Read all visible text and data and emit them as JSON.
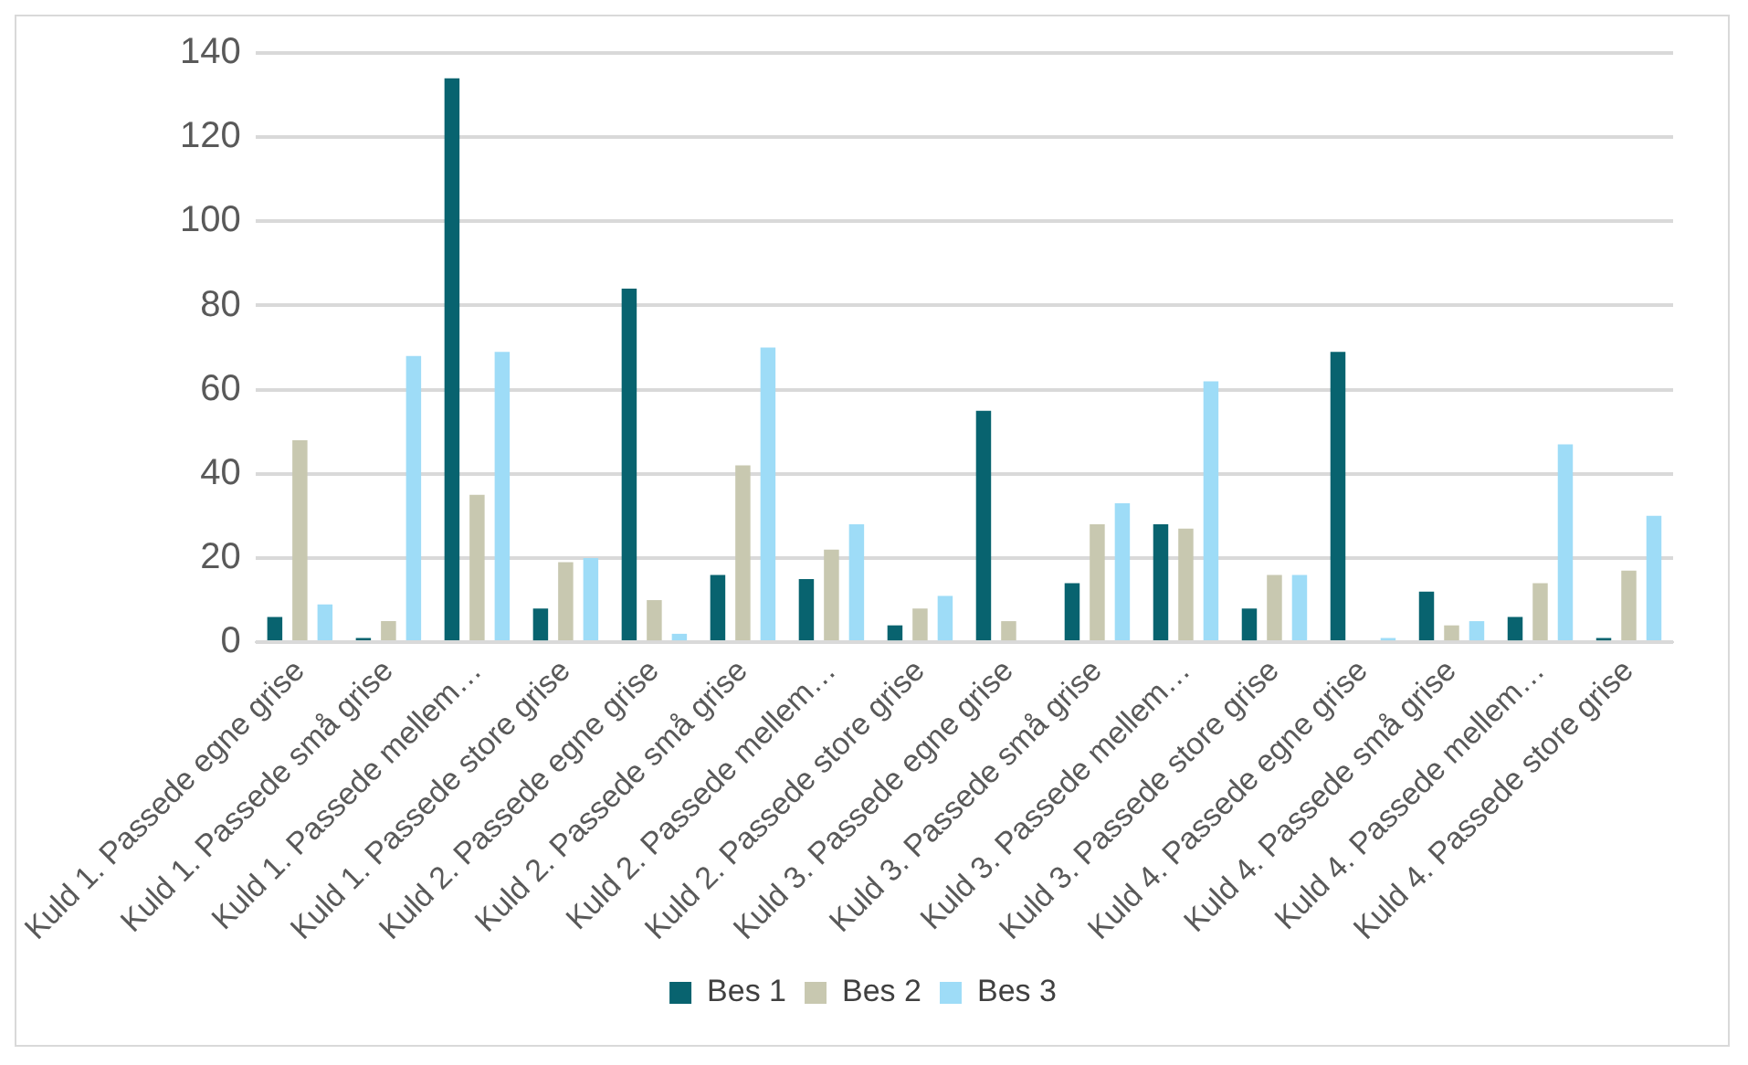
{
  "chart_data": {
    "type": "bar",
    "categories": [
      "Kuld 1. Passede egne grise",
      "Kuld 1. Passede små grise",
      "Kuld 1. Passede mellem…",
      "Kuld 1. Passede store grise",
      "Kuld 2. Passede egne grise",
      "Kuld 2. Passede små grise",
      "Kuld 2. Passede mellem…",
      "Kuld 2. Passede store grise",
      "Kuld 3. Passede egne grise",
      "Kuld 3. Passede små grise",
      "Kuld 3. Passede mellem…",
      "Kuld 3. Passede store grise",
      "Kuld 4. Passede egne grise",
      "Kuld 4. Passede små grise",
      "Kuld 4. Passede mellem…",
      "Kuld 4. Passede store grise"
    ],
    "series": [
      {
        "name": "Bes 1",
        "color": "#08636f",
        "values": [
          6,
          1,
          134,
          8,
          84,
          16,
          15,
          4,
          55,
          14,
          28,
          8,
          69,
          12,
          6,
          1
        ]
      },
      {
        "name": "Bes 2",
        "color": "#c8c8b0",
        "values": [
          48,
          5,
          35,
          19,
          10,
          42,
          22,
          8,
          5,
          28,
          27,
          16,
          0,
          4,
          14,
          17
        ]
      },
      {
        "name": "Bes 3",
        "color": "#9edcf7",
        "values": [
          9,
          68,
          69,
          20,
          2,
          70,
          28,
          11,
          0,
          33,
          62,
          16,
          1,
          5,
          47,
          30
        ]
      }
    ],
    "ylim": [
      0,
      140
    ],
    "yticks": [
      0,
      20,
      40,
      60,
      80,
      100,
      120,
      140
    ],
    "grid": "y",
    "legend": "bottom"
  }
}
